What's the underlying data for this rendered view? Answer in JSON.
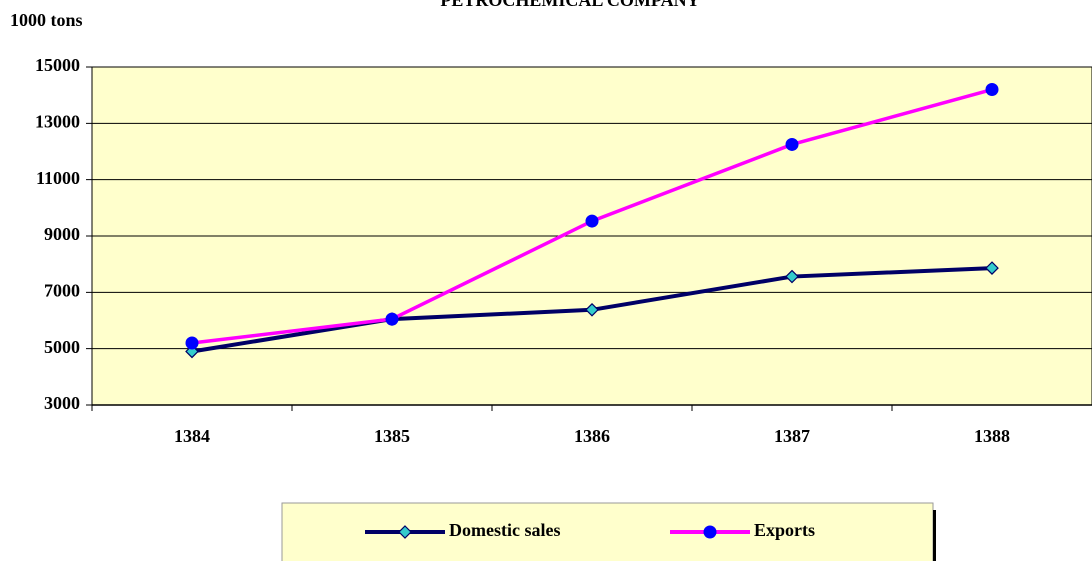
{
  "chart_data": {
    "type": "line",
    "title": "PETROCHEMICAL COMPANY",
    "y_label": "1000 tons",
    "categories": [
      "1384",
      "1385",
      "1386",
      "1387",
      "1388"
    ],
    "series": [
      {
        "name": "Domestic  sales",
        "color": "#000066",
        "marker": "diamond",
        "marker_color": "#33cccc",
        "values": [
          4900,
          6050,
          6380,
          7560,
          7860
        ]
      },
      {
        "name": "Exports",
        "color": "#ff00ff",
        "marker": "circle",
        "marker_color": "#0000ff",
        "values": [
          5200,
          6050,
          9530,
          12250,
          14200
        ]
      }
    ],
    "ylim": [
      3000,
      15000
    ],
    "yticks": [
      3000,
      5000,
      7000,
      9000,
      11000,
      13000,
      15000
    ],
    "grid": true,
    "plot_background": "#ffffcc",
    "legend": "bottom"
  }
}
